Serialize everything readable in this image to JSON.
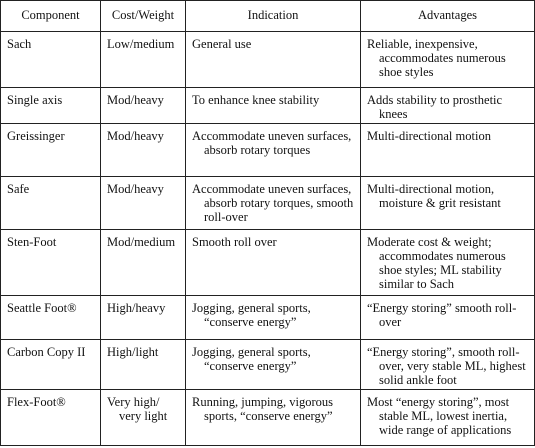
{
  "table": {
    "header": [
      "Component",
      "Cost/Weight",
      "Indication",
      "Advantages"
    ],
    "rows": [
      [
        "Sach",
        "Low/medium",
        "General use",
        "Reliable, inexpensive, accommodates numerous shoe styles"
      ],
      [
        "Single axis",
        "Mod/heavy",
        "To enhance knee stability",
        "Adds stability to prosthetic knees"
      ],
      [
        "Greissinger",
        "Mod/heavy",
        "Accommodate uneven surfaces, absorb rotary torques",
        "Multi-directional motion"
      ],
      [
        "Safe",
        "Mod/heavy",
        "Accommodate uneven surfaces, absorb rotary torques, smooth roll-over",
        "Multi-directional motion, moisture & grit resistant"
      ],
      [
        "Sten-Foot",
        "Mod/medium",
        "Smooth roll over",
        "Moderate cost & weight; accommodates numerous shoe styles; ML stability similar to Sach"
      ],
      [
        "Seattle Foot®",
        "High/heavy",
        "Jogging, general sports, “conserve energy”",
        "“Energy storing” smooth roll-over"
      ],
      [
        "Carbon Copy II",
        "High/light",
        "Jogging, general sports, “conserve energy”",
        "“Energy storing”, smooth roll-over, very stable ML, highest solid ankle foot"
      ],
      [
        "Flex-Foot®",
        "Very high/ very light",
        "Running, jumping, vigorous sports, “conserve energy”",
        "Most “energy storing”, most stable ML, lowest inertia, wide range of applications"
      ]
    ]
  }
}
